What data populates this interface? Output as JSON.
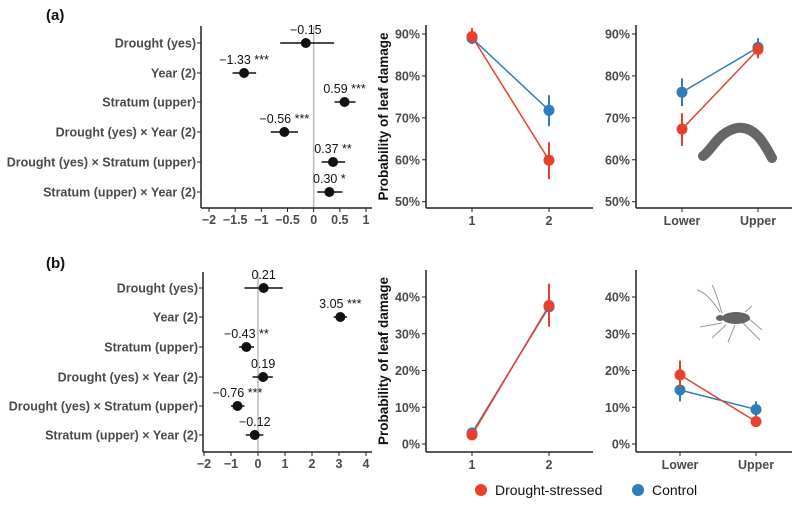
{
  "colors": {
    "drought": "#E8412B",
    "control": "#2F7DB8",
    "zero_line": "#BBBBBB",
    "silhouette": "#666666"
  },
  "legend": [
    {
      "key": "drought",
      "label": "Drought-stressed"
    },
    {
      "key": "control",
      "label": "Control"
    }
  ],
  "chart_data": [
    {
      "id": "a-forest",
      "type": "scatter",
      "panel_label": "(a)",
      "xlim": [
        -2,
        1
      ],
      "xticks": [
        -2,
        -1.5,
        -1,
        -0.5,
        0,
        0.5,
        1
      ],
      "xtick_labels": [
        "−2",
        "−1.5",
        "−1",
        "−0.5",
        "0",
        "0.5",
        "1"
      ],
      "rows": [
        {
          "term": "Drought (yes)",
          "estimate": -0.15,
          "lo": -0.64,
          "hi": 0.39,
          "label": "−0.15"
        },
        {
          "term": "Year (2)",
          "estimate": -1.33,
          "lo": -1.55,
          "hi": -1.1,
          "label": "−1.33 ***"
        },
        {
          "term": "Stratum (upper)",
          "estimate": 0.59,
          "lo": 0.4,
          "hi": 0.8,
          "label": "0.59 ***"
        },
        {
          "term": "Drought (yes) × Year (2)",
          "estimate": -0.56,
          "lo": -0.82,
          "hi": -0.3,
          "label": "−0.56 ***"
        },
        {
          "term": "Drought (yes) × Stratum (upper)",
          "estimate": 0.37,
          "lo": 0.15,
          "hi": 0.6,
          "label": "0.37 **"
        },
        {
          "term": "Stratum (upper) × Year (2)",
          "estimate": 0.3,
          "lo": 0.07,
          "hi": 0.55,
          "label": "0.30 *"
        }
      ]
    },
    {
      "id": "a-year",
      "type": "line",
      "ylabel": "Probability of leaf damage",
      "categories": [
        "1",
        "2"
      ],
      "ylim": [
        50,
        90
      ],
      "yticks": [
        50,
        60,
        70,
        80,
        90
      ],
      "ytick_labels": [
        "50%",
        "60%",
        "70%",
        "80%",
        "90%"
      ],
      "series": [
        {
          "key": "control",
          "values": [
            89.0,
            71.8
          ],
          "lo": [
            87.6,
            68.0
          ],
          "hi": [
            90.4,
            75.4
          ]
        },
        {
          "key": "drought",
          "values": [
            89.4,
            59.9
          ],
          "lo": [
            87.8,
            55.4
          ],
          "hi": [
            91.4,
            64.2
          ]
        }
      ]
    },
    {
      "id": "a-stratum",
      "type": "line",
      "categories": [
        "Lower",
        "Upper"
      ],
      "ylim": [
        50,
        90
      ],
      "yticks": [
        50,
        60,
        70,
        80,
        90
      ],
      "ytick_labels": [
        "50%",
        "60%",
        "70%",
        "80%",
        "90%"
      ],
      "series": [
        {
          "key": "control",
          "values": [
            76.1,
            86.8
          ],
          "lo": [
            72.8,
            85.4
          ],
          "hi": [
            79.4,
            89.0
          ]
        },
        {
          "key": "drought",
          "values": [
            67.3,
            86.3
          ],
          "lo": [
            63.3,
            84.2
          ],
          "hi": [
            71.1,
            87.9
          ]
        }
      ]
    },
    {
      "id": "b-forest",
      "type": "scatter",
      "panel_label": "(b)",
      "xlim": [
        -2,
        4
      ],
      "xticks": [
        -2,
        -1,
        0,
        1,
        2,
        3,
        4
      ],
      "xtick_labels": [
        "−2",
        "−1",
        "0",
        "1",
        "2",
        "3",
        "4"
      ],
      "rows": [
        {
          "term": "Drought (yes)",
          "estimate": 0.21,
          "lo": -0.5,
          "hi": 0.92,
          "label": "0.21"
        },
        {
          "term": "Year (2)",
          "estimate": 3.05,
          "lo": 2.8,
          "hi": 3.3,
          "label": "3.05 ***"
        },
        {
          "term": "Stratum (upper)",
          "estimate": -0.43,
          "lo": -0.7,
          "hi": -0.15,
          "label": "−0.43 **"
        },
        {
          "term": "Drought (yes) × Year (2)",
          "estimate": 0.19,
          "lo": -0.2,
          "hi": 0.55,
          "label": "0.19"
        },
        {
          "term": "Drought (yes) × Stratum (upper)",
          "estimate": -0.76,
          "lo": -1.0,
          "hi": -0.5,
          "label": "−0.76 ***"
        },
        {
          "term": "Stratum (upper) × Year (2)",
          "estimate": -0.12,
          "lo": -0.45,
          "hi": 0.2,
          "label": "−0.12"
        }
      ]
    },
    {
      "id": "b-year",
      "type": "line",
      "ylabel": "Probability of leaf damage",
      "categories": [
        "1",
        "2"
      ],
      "ylim": [
        0,
        40
      ],
      "yticks": [
        0,
        10,
        20,
        30,
        40
      ],
      "ytick_labels": [
        "0%",
        "10%",
        "20%",
        "30%",
        "40%"
      ],
      "series": [
        {
          "key": "control",
          "values": [
            3.0,
            37.3
          ],
          "lo": [
            2.3,
            32.0
          ],
          "hi": [
            3.7,
            43.0
          ]
        },
        {
          "key": "drought",
          "values": [
            2.5,
            37.7
          ],
          "lo": [
            1.9,
            31.9
          ],
          "hi": [
            3.1,
            43.6
          ]
        }
      ]
    },
    {
      "id": "b-stratum",
      "type": "line",
      "categories": [
        "Lower",
        "Upper"
      ],
      "ylim": [
        0,
        40
      ],
      "yticks": [
        0,
        10,
        20,
        30,
        40
      ],
      "ytick_labels": [
        "0%",
        "10%",
        "20%",
        "30%",
        "40%"
      ],
      "series": [
        {
          "key": "control",
          "values": [
            14.7,
            9.4
          ],
          "lo": [
            11.6,
            7.5
          ],
          "hi": [
            18.8,
            11.6
          ]
        },
        {
          "key": "drought",
          "values": [
            18.8,
            6.1
          ],
          "lo": [
            15.2,
            4.8
          ],
          "hi": [
            22.7,
            7.5
          ]
        }
      ]
    }
  ]
}
